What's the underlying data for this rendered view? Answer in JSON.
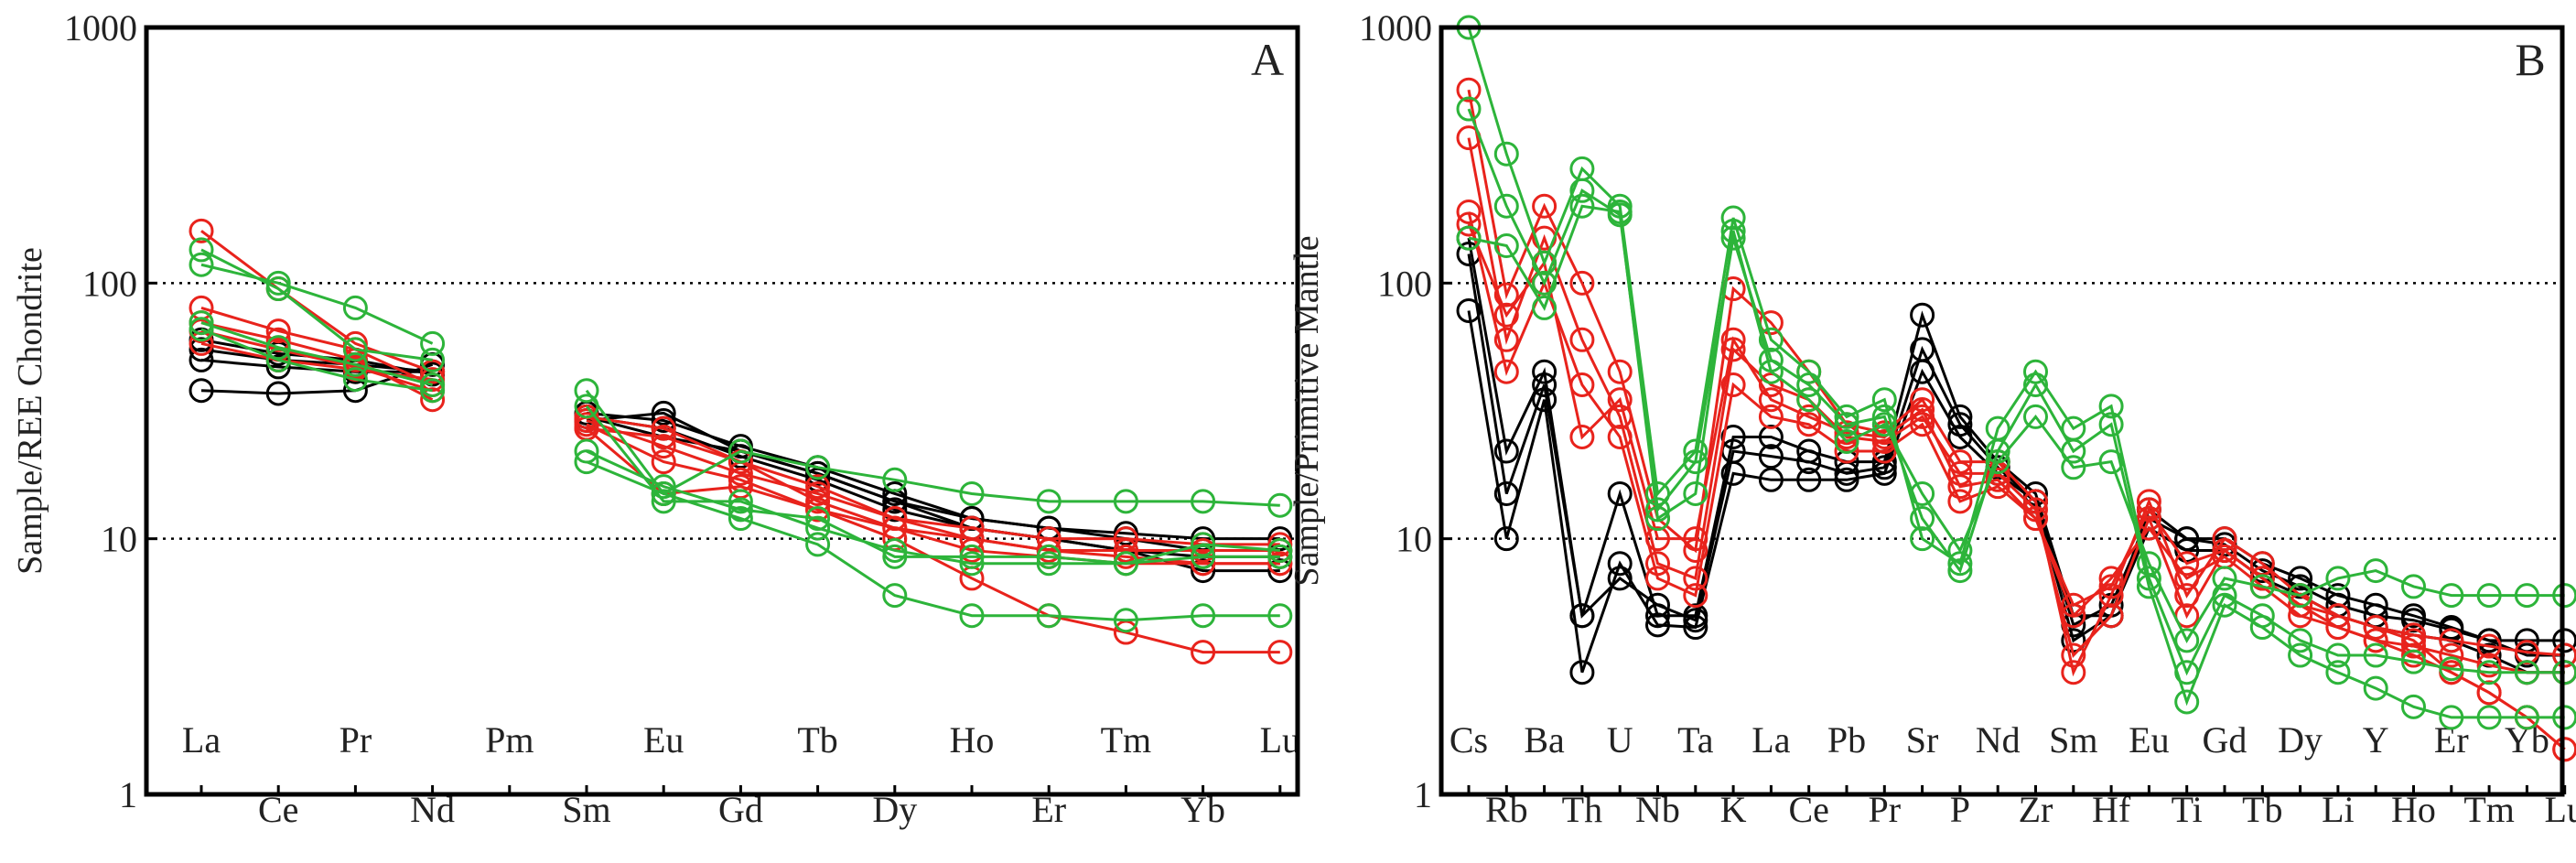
{
  "chart_data": [
    {
      "type": "line",
      "panel": "A",
      "ylabel": "Sample/REE Chondrite",
      "yscale": "log",
      "ylim": [
        1,
        1000
      ],
      "yticks": [
        "1",
        "10",
        "100",
        "1000"
      ],
      "reference_lines": [
        10,
        100
      ],
      "categories": [
        "La",
        "Ce",
        "Pr",
        "Nd",
        "Pm",
        "Sm",
        "Eu",
        "Gd",
        "Tb",
        "Dy",
        "Ho",
        "Er",
        "Tm",
        "Yb",
        "Lu"
      ],
      "series": [
        {
          "name": "black-1",
          "color": "#000000",
          "values": [
            38,
            37,
            38,
            48,
            null,
            30,
            25,
            22,
            18,
            14,
            11,
            10,
            9,
            7.5,
            7.5
          ]
        },
        {
          "name": "black-2",
          "color": "#000000",
          "values": [
            50,
            47,
            45,
            45,
            null,
            30,
            27,
            21,
            17,
            13,
            11,
            10,
            9,
            8.5,
            8.5
          ]
        },
        {
          "name": "black-3",
          "color": "#000000",
          "values": [
            55,
            50,
            48,
            45,
            null,
            31,
            29,
            23,
            19,
            15,
            12,
            11,
            10,
            9,
            9
          ]
        },
        {
          "name": "black-4",
          "color": "#000000",
          "values": [
            60,
            53,
            50,
            44,
            null,
            29,
            31,
            22,
            18,
            14,
            12,
            11,
            10.5,
            10,
            10
          ]
        },
        {
          "name": "red-1",
          "color": "#e8231c",
          "values": [
            160,
            95,
            58,
            45,
            null,
            30,
            27,
            20,
            16,
            12,
            10,
            9,
            9,
            9,
            9
          ]
        },
        {
          "name": "red-2",
          "color": "#e8231c",
          "values": [
            80,
            65,
            55,
            40,
            null,
            27,
            25,
            20,
            14,
            11,
            9,
            8.5,
            8,
            8,
            8
          ]
        },
        {
          "name": "red-3",
          "color": "#e8231c",
          "values": [
            70,
            60,
            50,
            35,
            null,
            27,
            15,
            16,
            13,
            10,
            7,
            5,
            4.3,
            3.6,
            3.6
          ]
        },
        {
          "name": "red-4",
          "color": "#e8231c",
          "values": [
            65,
            55,
            47,
            38,
            null,
            28,
            20,
            17,
            13,
            11,
            10,
            9,
            8.5,
            8,
            8
          ]
        },
        {
          "name": "red-5",
          "color": "#e8231c",
          "values": [
            58,
            50,
            46,
            42,
            null,
            29,
            23,
            18,
            15,
            12,
            11,
            10,
            10,
            9.5,
            9.5
          ]
        },
        {
          "name": "green-1",
          "color": "#2db43a",
          "values": [
            118,
            100,
            80,
            58,
            null,
            38,
            15,
            22,
            19,
            17,
            15,
            14,
            14,
            14,
            13.5
          ]
        },
        {
          "name": "green-2",
          "color": "#2db43a",
          "values": [
            135,
            95,
            55,
            50,
            null,
            33,
            14,
            14,
            11,
            9,
            8,
            8,
            8,
            8.5,
            8.5
          ]
        },
        {
          "name": "green-3",
          "color": "#2db43a",
          "values": [
            70,
            56,
            48,
            40,
            null,
            20,
            15,
            12,
            9.5,
            6,
            5,
            5,
            4.8,
            5,
            5
          ]
        },
        {
          "name": "green-4",
          "color": "#2db43a",
          "values": [
            66,
            50,
            42,
            38,
            null,
            22,
            16,
            13,
            12,
            8.5,
            8.5,
            8.5,
            8,
            9.5,
            9
          ]
        }
      ]
    },
    {
      "type": "line",
      "panel": "B",
      "ylabel": "Sample/Primitive Mantle",
      "yscale": "log",
      "ylim": [
        1,
        1000
      ],
      "yticks": [
        "1",
        "10",
        "100",
        "1000"
      ],
      "reference_lines": [
        10,
        100
      ],
      "categories": [
        "Cs",
        "Rb",
        "Ba",
        "Th",
        "U",
        "Nb",
        "Ta",
        "K",
        "La",
        "Ce",
        "Pb",
        "Pr",
        "Sr",
        "P",
        "Nd",
        "Zr",
        "Sm",
        "Hf",
        "Eu",
        "Ti",
        "Gd",
        "Tb",
        "Dy",
        "Li",
        "Y",
        "Ho",
        "Er",
        "Tm",
        "Yb",
        "Lu"
      ],
      "series": [
        {
          "name": "black-1",
          "color": "#000000",
          "values": [
            130,
            15,
            40,
            5,
            15,
            5,
            5,
            25,
            25,
            22,
            20,
            20,
            75,
            30,
            20,
            15,
            5,
            5,
            13,
            10,
            10,
            8,
            7,
            6,
            5.5,
            5,
            4.5,
            4,
            3.5,
            3.5
          ]
        },
        {
          "name": "black-2",
          "color": "#000000",
          "values": [
            78,
            10,
            35,
            3,
            8,
            4.6,
            4.5,
            18,
            17,
            17,
            17,
            18,
            45,
            25,
            18,
            14,
            4,
            5,
            11,
            9,
            9,
            7,
            6,
            5,
            4.5,
            4.2,
            4,
            3.5,
            3,
            3
          ]
        },
        {
          "name": "black-3",
          "color": "#000000",
          "values": [
            150,
            22,
            45,
            5,
            7,
            5.5,
            4.8,
            22,
            21,
            20,
            18,
            19,
            55,
            28,
            19,
            14,
            4.6,
            5.5,
            12,
            10,
            9.5,
            7.5,
            6.5,
            5.5,
            5,
            4.8,
            4.4,
            4,
            4,
            4
          ]
        },
        {
          "name": "red-1",
          "color": "#e8231c",
          "values": [
            570,
            90,
            200,
            100,
            45,
            12,
            9,
            95,
            70,
            45,
            28,
            26,
            35,
            20,
            20,
            14,
            3,
            6,
            14,
            6,
            10,
            8,
            6,
            5,
            4.5,
            4,
            3,
            2.5,
            2,
            1.5
          ]
        },
        {
          "name": "red-2",
          "color": "#e8231c",
          "values": [
            370,
            60,
            150,
            60,
            30,
            8,
            7,
            55,
            40,
            35,
            25,
            24,
            30,
            18,
            18,
            13,
            3.5,
            5,
            12,
            5,
            9,
            7,
            5.5,
            4.5,
            4,
            3.5,
            3,
            2.5,
            2,
            1.5
          ]
        },
        {
          "name": "red-3",
          "color": "#e8231c",
          "values": [
            190,
            45,
            100,
            40,
            25,
            7,
            6,
            40,
            30,
            28,
            22,
            22,
            28,
            14,
            16,
            12,
            5,
            7,
            11,
            7,
            8.5,
            6.5,
            5,
            4.5,
            4,
            3.8,
            3.5,
            3.2,
            3,
            3
          ]
        },
        {
          "name": "red-4",
          "color": "#e8231c",
          "values": [
            170,
            75,
            120,
            25,
            35,
            10,
            10,
            60,
            35,
            30,
            26,
            25,
            32,
            16,
            17,
            12,
            5.5,
            6.5,
            13,
            8,
            9,
            7,
            5.5,
            5,
            4.5,
            4.2,
            4,
            3.8,
            3.6,
            3.5
          ]
        },
        {
          "name": "green-1",
          "color": "#2db43a",
          "values": [
            1000,
            320,
            120,
            280,
            200,
            15,
            22,
            180,
            60,
            45,
            30,
            35,
            10,
            8,
            27,
            45,
            27,
            33,
            7,
            3,
            6,
            5,
            4,
            3.5,
            3.5,
            3.3,
            3.1,
            3,
            3,
            3
          ]
        },
        {
          "name": "green-2",
          "color": "#2db43a",
          "values": [
            480,
            200,
            100,
            230,
            185,
            13,
            20,
            150,
            50,
            40,
            28,
            30,
            12,
            7.5,
            22,
            40,
            22,
            28,
            6.5,
            2.3,
            5.5,
            4.5,
            3.5,
            3,
            2.6,
            2.2,
            2,
            2,
            2,
            2
          ]
        },
        {
          "name": "green-3",
          "color": "#2db43a",
          "values": [
            150,
            140,
            80,
            200,
            190,
            12,
            15,
            160,
            45,
            35,
            24,
            28,
            15,
            9,
            20,
            30,
            19,
            20,
            8,
            4,
            7,
            6.5,
            6,
            7,
            7.5,
            6.5,
            6,
            6,
            6,
            6
          ]
        }
      ]
    }
  ]
}
